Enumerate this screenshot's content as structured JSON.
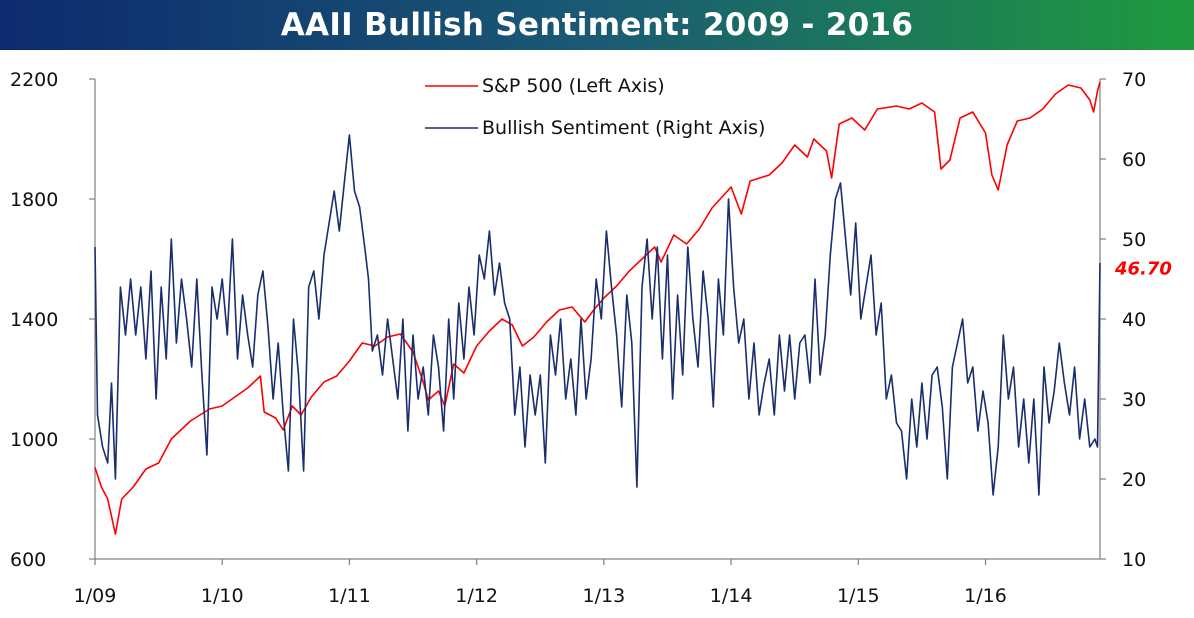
{
  "chart_data": {
    "type": "line",
    "title": "AAII Bullish Sentiment: 2009 - 2016",
    "x_tick_labels": [
      "1/09",
      "1/10",
      "1/11",
      "1/12",
      "1/13",
      "1/14",
      "1/15",
      "1/16"
    ],
    "x_range": [
      2009.0,
      2016.9
    ],
    "left_axis": {
      "ticks": [
        "600",
        "1000",
        "1400",
        "1800",
        "2200"
      ],
      "range": [
        600,
        2200
      ]
    },
    "right_axis": {
      "ticks": [
        "10",
        "20",
        "30",
        "40",
        "50",
        "60",
        "70"
      ],
      "range": [
        10,
        70
      ]
    },
    "last_value_label": "46.70",
    "last_value": 46.7,
    "series": [
      {
        "name": "S&P 500 (Left Axis)",
        "axis": "left",
        "color": "#ff0000",
        "points": [
          [
            2009.0,
            905
          ],
          [
            2009.05,
            840
          ],
          [
            2009.1,
            800
          ],
          [
            2009.16,
            683
          ],
          [
            2009.21,
            800
          ],
          [
            2009.3,
            840
          ],
          [
            2009.4,
            900
          ],
          [
            2009.5,
            920
          ],
          [
            2009.6,
            1000
          ],
          [
            2009.75,
            1060
          ],
          [
            2009.9,
            1100
          ],
          [
            2010.0,
            1110
          ],
          [
            2010.1,
            1140
          ],
          [
            2010.2,
            1170
          ],
          [
            2010.3,
            1210
          ],
          [
            2010.33,
            1090
          ],
          [
            2010.42,
            1070
          ],
          [
            2010.48,
            1030
          ],
          [
            2010.55,
            1110
          ],
          [
            2010.62,
            1080
          ],
          [
            2010.7,
            1140
          ],
          [
            2010.8,
            1190
          ],
          [
            2010.9,
            1210
          ],
          [
            2011.0,
            1260
          ],
          [
            2011.1,
            1320
          ],
          [
            2011.2,
            1310
          ],
          [
            2011.3,
            1340
          ],
          [
            2011.4,
            1350
          ],
          [
            2011.45,
            1320
          ],
          [
            2011.5,
            1290
          ],
          [
            2011.58,
            1190
          ],
          [
            2011.62,
            1130
          ],
          [
            2011.7,
            1160
          ],
          [
            2011.75,
            1110
          ],
          [
            2011.82,
            1250
          ],
          [
            2011.9,
            1220
          ],
          [
            2012.0,
            1310
          ],
          [
            2012.1,
            1360
          ],
          [
            2012.2,
            1400
          ],
          [
            2012.28,
            1380
          ],
          [
            2012.36,
            1310
          ],
          [
            2012.45,
            1340
          ],
          [
            2012.55,
            1390
          ],
          [
            2012.65,
            1430
          ],
          [
            2012.75,
            1440
          ],
          [
            2012.85,
            1390
          ],
          [
            2012.92,
            1430
          ],
          [
            2013.0,
            1470
          ],
          [
            2013.1,
            1510
          ],
          [
            2013.2,
            1560
          ],
          [
            2013.3,
            1600
          ],
          [
            2013.4,
            1640
          ],
          [
            2013.45,
            1590
          ],
          [
            2013.55,
            1680
          ],
          [
            2013.65,
            1650
          ],
          [
            2013.75,
            1700
          ],
          [
            2013.85,
            1770
          ],
          [
            2014.0,
            1840
          ],
          [
            2014.08,
            1750
          ],
          [
            2014.15,
            1860
          ],
          [
            2014.3,
            1880
          ],
          [
            2014.4,
            1920
          ],
          [
            2014.5,
            1980
          ],
          [
            2014.6,
            1940
          ],
          [
            2014.65,
            2000
          ],
          [
            2014.75,
            1960
          ],
          [
            2014.79,
            1870
          ],
          [
            2014.85,
            2050
          ],
          [
            2014.95,
            2070
          ],
          [
            2015.05,
            2030
          ],
          [
            2015.15,
            2100
          ],
          [
            2015.3,
            2110
          ],
          [
            2015.4,
            2100
          ],
          [
            2015.5,
            2120
          ],
          [
            2015.6,
            2090
          ],
          [
            2015.65,
            1900
          ],
          [
            2015.72,
            1930
          ],
          [
            2015.8,
            2070
          ],
          [
            2015.9,
            2090
          ],
          [
            2016.0,
            2020
          ],
          [
            2016.05,
            1880
          ],
          [
            2016.1,
            1830
          ],
          [
            2016.17,
            1980
          ],
          [
            2016.25,
            2060
          ],
          [
            2016.35,
            2070
          ],
          [
            2016.45,
            2100
          ],
          [
            2016.55,
            2150
          ],
          [
            2016.65,
            2180
          ],
          [
            2016.75,
            2170
          ],
          [
            2016.82,
            2130
          ],
          [
            2016.85,
            2090
          ],
          [
            2016.88,
            2160
          ],
          [
            2016.9,
            2190
          ]
        ]
      },
      {
        "name": "Bullish Sentiment (Right Axis)",
        "axis": "right",
        "color": "#1a2e6e",
        "points": [
          [
            2009.0,
            49
          ],
          [
            2009.02,
            28
          ],
          [
            2009.06,
            24
          ],
          [
            2009.1,
            22
          ],
          [
            2009.13,
            32
          ],
          [
            2009.16,
            20
          ],
          [
            2009.2,
            44
          ],
          [
            2009.24,
            38
          ],
          [
            2009.28,
            45
          ],
          [
            2009.32,
            38
          ],
          [
            2009.36,
            44
          ],
          [
            2009.4,
            35
          ],
          [
            2009.44,
            46
          ],
          [
            2009.48,
            30
          ],
          [
            2009.52,
            44
          ],
          [
            2009.56,
            35
          ],
          [
            2009.6,
            50
          ],
          [
            2009.64,
            37
          ],
          [
            2009.68,
            45
          ],
          [
            2009.72,
            40
          ],
          [
            2009.76,
            34
          ],
          [
            2009.8,
            45
          ],
          [
            2009.84,
            33
          ],
          [
            2009.88,
            23
          ],
          [
            2009.92,
            44
          ],
          [
            2009.96,
            40
          ],
          [
            2010.0,
            45
          ],
          [
            2010.04,
            38
          ],
          [
            2010.08,
            50
          ],
          [
            2010.12,
            35
          ],
          [
            2010.16,
            43
          ],
          [
            2010.2,
            38
          ],
          [
            2010.24,
            34
          ],
          [
            2010.28,
            43
          ],
          [
            2010.32,
            46
          ],
          [
            2010.36,
            39
          ],
          [
            2010.4,
            30
          ],
          [
            2010.44,
            37
          ],
          [
            2010.48,
            28
          ],
          [
            2010.52,
            21
          ],
          [
            2010.56,
            40
          ],
          [
            2010.6,
            33
          ],
          [
            2010.64,
            21
          ],
          [
            2010.68,
            44
          ],
          [
            2010.72,
            46
          ],
          [
            2010.76,
            40
          ],
          [
            2010.8,
            48
          ],
          [
            2010.84,
            52
          ],
          [
            2010.88,
            56
          ],
          [
            2010.92,
            51
          ],
          [
            2010.96,
            57
          ],
          [
            2011.0,
            63
          ],
          [
            2011.04,
            56
          ],
          [
            2011.08,
            54
          ],
          [
            2011.12,
            49
          ],
          [
            2011.15,
            45
          ],
          [
            2011.18,
            36
          ],
          [
            2011.22,
            38
          ],
          [
            2011.26,
            33
          ],
          [
            2011.3,
            40
          ],
          [
            2011.34,
            35
          ],
          [
            2011.38,
            30
          ],
          [
            2011.42,
            40
          ],
          [
            2011.46,
            26
          ],
          [
            2011.5,
            38
          ],
          [
            2011.54,
            30
          ],
          [
            2011.58,
            34
          ],
          [
            2011.62,
            28
          ],
          [
            2011.66,
            38
          ],
          [
            2011.7,
            34
          ],
          [
            2011.74,
            26
          ],
          [
            2011.78,
            40
          ],
          [
            2011.82,
            30
          ],
          [
            2011.86,
            42
          ],
          [
            2011.9,
            35
          ],
          [
            2011.94,
            44
          ],
          [
            2011.98,
            38
          ],
          [
            2012.02,
            48
          ],
          [
            2012.06,
            45
          ],
          [
            2012.1,
            51
          ],
          [
            2012.14,
            43
          ],
          [
            2012.18,
            47
          ],
          [
            2012.22,
            42
          ],
          [
            2012.26,
            40
          ],
          [
            2012.3,
            28
          ],
          [
            2012.34,
            34
          ],
          [
            2012.38,
            24
          ],
          [
            2012.42,
            33
          ],
          [
            2012.46,
            28
          ],
          [
            2012.5,
            33
          ],
          [
            2012.54,
            22
          ],
          [
            2012.58,
            38
          ],
          [
            2012.62,
            33
          ],
          [
            2012.66,
            40
          ],
          [
            2012.7,
            30
          ],
          [
            2012.74,
            35
          ],
          [
            2012.78,
            28
          ],
          [
            2012.82,
            40
          ],
          [
            2012.86,
            30
          ],
          [
            2012.9,
            35
          ],
          [
            2012.94,
            45
          ],
          [
            2012.98,
            40
          ],
          [
            2013.02,
            51
          ],
          [
            2013.06,
            44
          ],
          [
            2013.1,
            38
          ],
          [
            2013.14,
            29
          ],
          [
            2013.18,
            43
          ],
          [
            2013.22,
            37
          ],
          [
            2013.26,
            19
          ],
          [
            2013.3,
            44
          ],
          [
            2013.34,
            50
          ],
          [
            2013.38,
            40
          ],
          [
            2013.42,
            49
          ],
          [
            2013.46,
            35
          ],
          [
            2013.5,
            48
          ],
          [
            2013.54,
            30
          ],
          [
            2013.58,
            43
          ],
          [
            2013.62,
            33
          ],
          [
            2013.66,
            49
          ],
          [
            2013.7,
            40
          ],
          [
            2013.74,
            34
          ],
          [
            2013.78,
            46
          ],
          [
            2013.82,
            40
          ],
          [
            2013.86,
            29
          ],
          [
            2013.9,
            45
          ],
          [
            2013.94,
            38
          ],
          [
            2013.98,
            55
          ],
          [
            2014.02,
            44
          ],
          [
            2014.06,
            37
          ],
          [
            2014.1,
            40
          ],
          [
            2014.14,
            30
          ],
          [
            2014.18,
            37
          ],
          [
            2014.22,
            28
          ],
          [
            2014.26,
            32
          ],
          [
            2014.3,
            35
          ],
          [
            2014.34,
            28
          ],
          [
            2014.38,
            38
          ],
          [
            2014.42,
            31
          ],
          [
            2014.46,
            38
          ],
          [
            2014.5,
            30
          ],
          [
            2014.54,
            37
          ],
          [
            2014.58,
            38
          ],
          [
            2014.62,
            32
          ],
          [
            2014.66,
            45
          ],
          [
            2014.7,
            33
          ],
          [
            2014.74,
            38
          ],
          [
            2014.78,
            48
          ],
          [
            2014.82,
            55
          ],
          [
            2014.86,
            57
          ],
          [
            2014.9,
            50
          ],
          [
            2014.94,
            43
          ],
          [
            2014.98,
            52
          ],
          [
            2015.02,
            40
          ],
          [
            2015.06,
            44
          ],
          [
            2015.1,
            48
          ],
          [
            2015.14,
            38
          ],
          [
            2015.18,
            42
          ],
          [
            2015.22,
            30
          ],
          [
            2015.26,
            33
          ],
          [
            2015.3,
            27
          ],
          [
            2015.34,
            26
          ],
          [
            2015.38,
            20
          ],
          [
            2015.42,
            30
          ],
          [
            2015.46,
            24
          ],
          [
            2015.5,
            32
          ],
          [
            2015.54,
            25
          ],
          [
            2015.58,
            33
          ],
          [
            2015.62,
            34
          ],
          [
            2015.66,
            29
          ],
          [
            2015.7,
            20
          ],
          [
            2015.74,
            34
          ],
          [
            2015.78,
            37
          ],
          [
            2015.82,
            40
          ],
          [
            2015.86,
            32
          ],
          [
            2015.9,
            34
          ],
          [
            2015.94,
            26
          ],
          [
            2015.98,
            31
          ],
          [
            2016.02,
            27
          ],
          [
            2016.06,
            18
          ],
          [
            2016.1,
            24
          ],
          [
            2016.14,
            38
          ],
          [
            2016.18,
            30
          ],
          [
            2016.22,
            34
          ],
          [
            2016.26,
            24
          ],
          [
            2016.3,
            30
          ],
          [
            2016.34,
            22
          ],
          [
            2016.38,
            30
          ],
          [
            2016.42,
            18
          ],
          [
            2016.46,
            34
          ],
          [
            2016.5,
            27
          ],
          [
            2016.54,
            31
          ],
          [
            2016.58,
            37
          ],
          [
            2016.62,
            32
          ],
          [
            2016.66,
            28
          ],
          [
            2016.7,
            34
          ],
          [
            2016.74,
            25
          ],
          [
            2016.78,
            30
          ],
          [
            2016.82,
            24
          ],
          [
            2016.86,
            25
          ],
          [
            2016.88,
            24
          ],
          [
            2016.9,
            47
          ]
        ]
      }
    ]
  }
}
